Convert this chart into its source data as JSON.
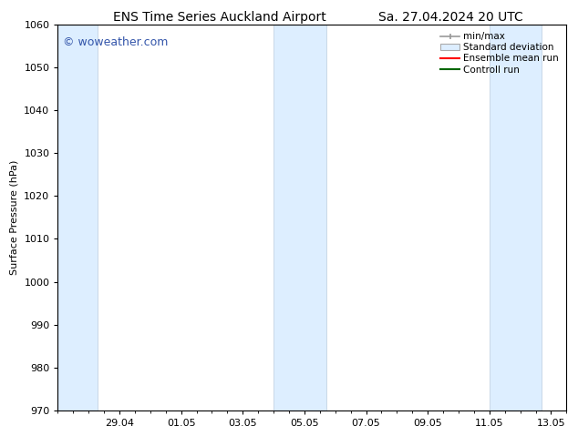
{
  "title_left": "ENS Time Series Auckland Airport",
  "title_right": "Sa. 27.04.2024 20 UTC",
  "ylabel": "Surface Pressure (hPa)",
  "ylim": [
    970,
    1060
  ],
  "yticks": [
    970,
    980,
    990,
    1000,
    1010,
    1020,
    1030,
    1040,
    1050,
    1060
  ],
  "bg_color": "#ffffff",
  "plot_bg_color": "#ffffff",
  "watermark": "© woweather.com",
  "watermark_color": "#3355aa",
  "shaded_bands_color": "#ddeeff",
  "shaded_bands_edge_color": "#bbccdd",
  "x_tick_labels": [
    "29.04",
    "01.05",
    "03.05",
    "05.05",
    "07.05",
    "09.05",
    "11.05",
    "13.05"
  ],
  "x_tick_positions": [
    2,
    4,
    6,
    8,
    10,
    12,
    14,
    16
  ],
  "xlim": [
    0,
    16.5
  ],
  "shaded_regions": [
    {
      "x_start": 0.0,
      "x_end": 1.3
    },
    {
      "x_start": 7.0,
      "x_end": 8.7
    },
    {
      "x_start": 14.0,
      "x_end": 15.7
    }
  ],
  "legend_items": [
    {
      "label": "min/max",
      "color": "#999999",
      "type": "errorbar"
    },
    {
      "label": "Standard deviation",
      "color": "#ddeeff",
      "type": "box"
    },
    {
      "label": "Ensemble mean run",
      "color": "#ff0000",
      "type": "line"
    },
    {
      "label": "Controll run",
      "color": "#006600",
      "type": "line"
    }
  ],
  "font_size_title": 10,
  "font_size_axis": 8,
  "font_size_tick": 8,
  "font_size_legend": 7.5,
  "font_size_watermark": 9,
  "minor_tick_interval": 0.5
}
